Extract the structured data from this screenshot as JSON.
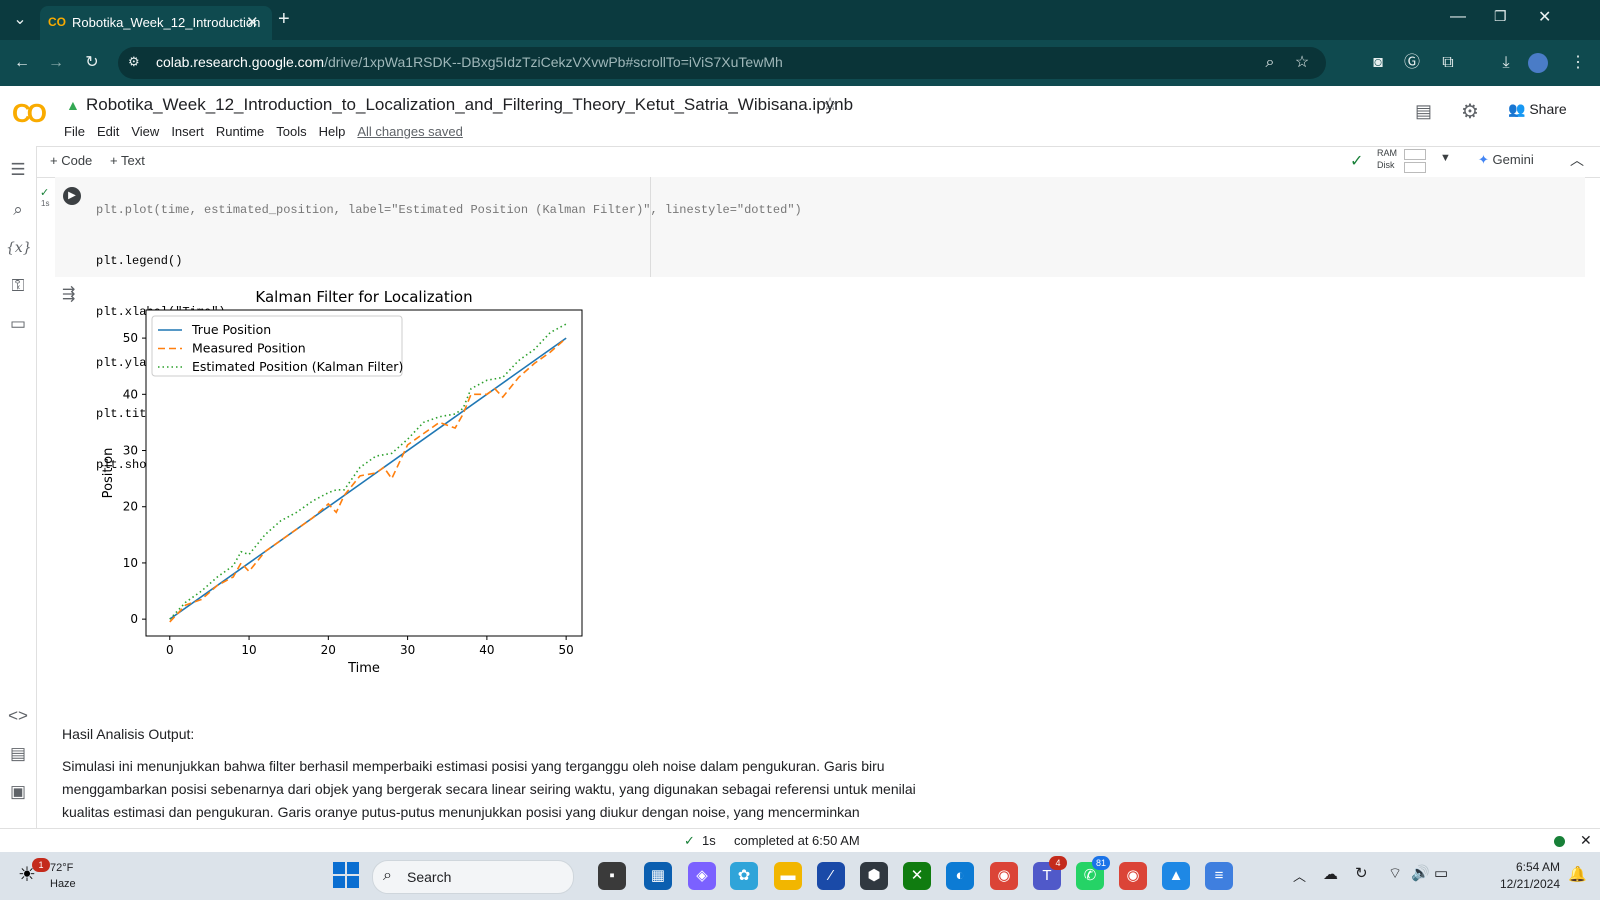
{
  "browser": {
    "tab_title": "Robotika_Week_12_Introduction",
    "url_host": "colab.research.google.com",
    "url_path": "/drive/1xpWa1RSDK--DBxg5IdzTziCekzVXvwPb#scrollTo=iViS7XuTewMh"
  },
  "colab": {
    "notebook_title": "Robotika_Week_12_Introduction_to_Localization_and_Filtering_Theory_Ketut_Satria_Wibisana.ipynb",
    "menu": [
      "File",
      "Edit",
      "View",
      "Insert",
      "Runtime",
      "Tools",
      "Help"
    ],
    "saved_status": "All changes saved",
    "share_label": "Share",
    "add_code": "+ Code",
    "add_text": "+ Text",
    "ram_label": "RAM",
    "disk_label": "Disk",
    "gemini_label": "Gemini"
  },
  "cell": {
    "exec_time": "1s",
    "code_line_0": "plt.plot(time, estimated_position, label=\"Estimated Position (Kalman Filter)\", linestyle=\"dotted\")",
    "code_line_1": "plt.legend()",
    "code_line_2": "plt.xlabel(\"Time\")",
    "code_line_3": "plt.ylabel(\"Position\")",
    "code_line_4": "plt.title(\"Kalman Filter for Localization\")",
    "code_line_5": "plt.show()"
  },
  "chart_data": {
    "type": "line",
    "title": "Kalman Filter for Localization",
    "xlabel": "Time",
    "ylabel": "Position",
    "xlim": [
      -3,
      52
    ],
    "ylim": [
      -3,
      55
    ],
    "xticks": [
      0,
      10,
      20,
      30,
      40,
      50
    ],
    "yticks": [
      0,
      10,
      20,
      30,
      40,
      50
    ],
    "legend_position": "top-left",
    "series": [
      {
        "name": "True Position",
        "color": "#1f77b4",
        "style": "solid",
        "x": [
          0,
          50
        ],
        "y": [
          0,
          50
        ]
      },
      {
        "name": "Measured Position",
        "color": "#ff7f0e",
        "style": "dashed",
        "x": [
          0,
          2,
          4,
          6,
          8,
          9,
          10,
          12,
          14,
          16,
          18,
          20,
          21,
          22,
          24,
          26,
          27,
          28,
          30,
          32,
          34,
          36,
          37,
          38,
          40,
          41,
          42,
          44,
          46,
          48,
          50
        ],
        "y": [
          -0.5,
          2.5,
          3.5,
          6,
          7.5,
          10,
          8.5,
          12,
          14,
          16,
          18,
          20.5,
          19,
          22,
          25.5,
          26,
          27,
          25,
          31,
          33,
          35,
          34,
          36.5,
          40,
          40,
          41,
          39.5,
          43,
          45.5,
          47.5,
          50
        ]
      },
      {
        "name": "Estimated Position (Kalman Filter)",
        "color": "#2ca02c",
        "style": "dotted",
        "x": [
          0,
          2,
          4,
          6,
          8,
          9,
          10,
          12,
          14,
          16,
          18,
          20,
          21,
          22,
          24,
          26,
          28,
          30,
          32,
          34,
          36,
          37,
          38,
          40,
          42,
          44,
          46,
          48,
          50
        ],
        "y": [
          0,
          3,
          5,
          7.5,
          9.5,
          12,
          11.5,
          15,
          17.5,
          19,
          21,
          22.5,
          23,
          23,
          27,
          29,
          29.5,
          32,
          35,
          36,
          36.5,
          37.5,
          41,
          42.5,
          43,
          46,
          48,
          51,
          52.5
        ]
      }
    ]
  },
  "output": {
    "heading": "Hasil Analisis Output:",
    "paragraph": "Simulasi ini menunjukkan bahwa filter berhasil memperbaiki estimasi posisi yang terganggu oleh noise dalam pengukuran. Garis biru menggambarkan posisi sebenarnya dari objek yang bergerak secara linear seiring waktu, yang digunakan sebagai referensi untuk menilai kualitas estimasi dan pengukuran. Garis oranye putus-putus menunjukkan posisi yang diukur dengan noise, yang mencerminkan"
  },
  "status": {
    "elapsed": "1s",
    "completed": "completed at 6:50 AM"
  },
  "taskbar": {
    "weather_temp": "72°F",
    "weather_desc": "Haze",
    "weather_badge": "1",
    "search_label": "Search",
    "teams_badge": "4",
    "whatsapp_badge": "81",
    "time": "6:54 AM",
    "date": "12/21/2024"
  }
}
